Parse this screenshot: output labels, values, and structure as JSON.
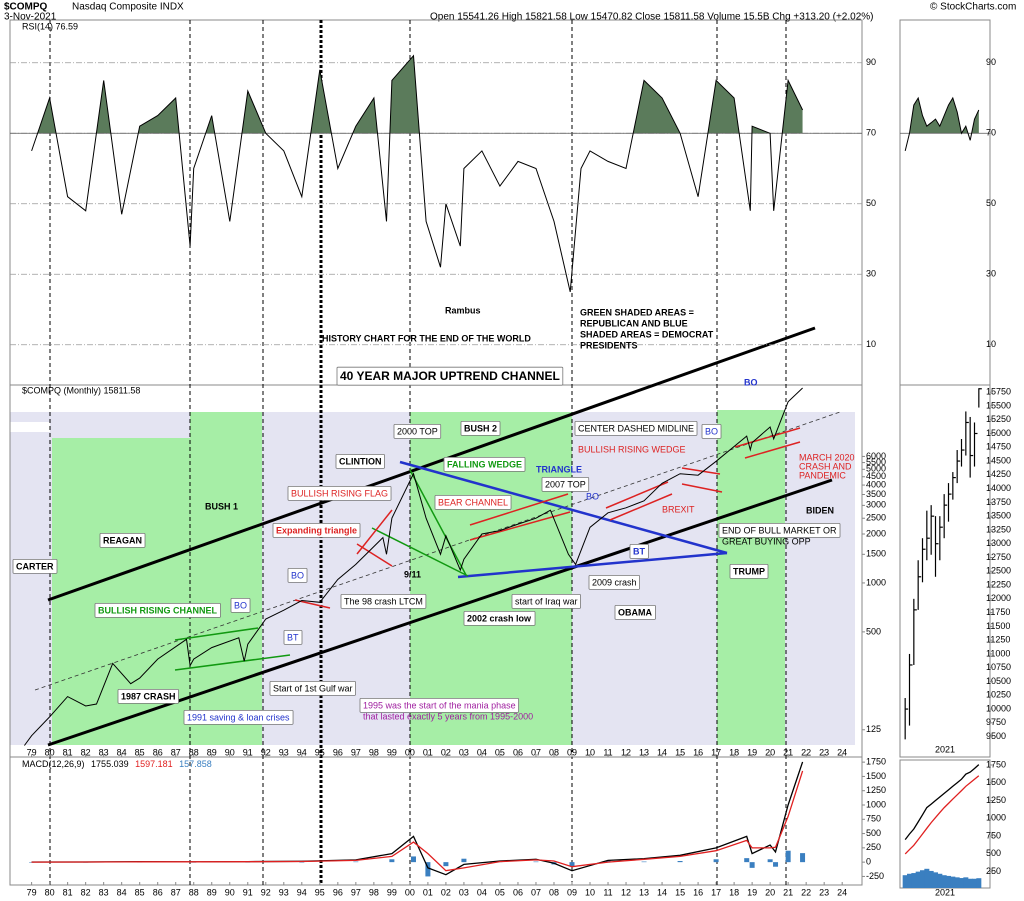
{
  "header": {
    "symbol": "$COMPQ",
    "name": "Nasdaq Composite INDX",
    "date": "3-Nov-2021",
    "quote": "Open 15541.26 High 15821.58 Low 15470.82 Close 15811.58 Volume 15.5B Chg +313.20 (+2.02%)",
    "credit": "© StockCharts.com"
  },
  "chart_data": [
    {
      "type": "line",
      "title": "RSI(14) 76.59",
      "color": "#000000",
      "shade_color": "#5b7b5b",
      "shade_above": 70,
      "x": [
        1979,
        1980,
        1981,
        1982,
        1983,
        1984,
        1985,
        1986,
        1987,
        1987.8,
        1988,
        1989,
        1990,
        1991,
        1992,
        1993,
        1994,
        1995,
        1996,
        1997,
        1998,
        1998.7,
        1999,
        2000.2,
        2000.9,
        2001.7,
        2002,
        2002.8,
        2003,
        2004,
        2005,
        2006,
        2007,
        2008,
        2008.9,
        2009.5,
        2010,
        2011,
        2012,
        2013,
        2014,
        2015,
        2016,
        2017,
        2018,
        2018.9,
        2019,
        2020,
        2020.2,
        2021,
        2021.8
      ],
      "values": [
        65,
        80,
        52,
        48,
        85,
        47,
        72,
        75,
        80,
        38,
        60,
        75,
        45,
        82,
        70,
        65,
        52,
        88,
        60,
        72,
        80,
        45,
        85,
        92,
        45,
        32,
        50,
        38,
        60,
        65,
        55,
        62,
        60,
        45,
        25,
        60,
        65,
        62,
        60,
        85,
        80,
        70,
        52,
        85,
        80,
        48,
        72,
        70,
        48,
        85,
        76.59
      ],
      "xlim": [
        1977.8,
        2025.1
      ],
      "ylim": [
        0,
        100
      ],
      "yticks": [
        10,
        30,
        50,
        70,
        90
      ],
      "grid": true
    },
    {
      "type": "line",
      "title": "$COMPQ (Monthly) 15811.58",
      "color": "#000000",
      "yscale": "log",
      "x": [
        1978.6,
        1979,
        1980,
        1981,
        1982,
        1982.6,
        1983.5,
        1984.5,
        1985,
        1986,
        1987.6,
        1987.8,
        1988,
        1989,
        1990.5,
        1990.8,
        1991,
        1992,
        1993,
        1994,
        1995,
        1996,
        1997,
        1998.5,
        1998.7,
        1999,
        2000.2,
        2000.9,
        2001.7,
        2002,
        2002.8,
        2003,
        2004,
        2005,
        2006,
        2007,
        2007.8,
        2008.8,
        2009.2,
        2010,
        2011,
        2012,
        2013,
        2014,
        2015,
        2016,
        2017,
        2018.7,
        2018.9,
        2019,
        2020,
        2020.2,
        2021,
        2021.8
      ],
      "values": [
        100,
        115,
        150,
        200,
        175,
        180,
        320,
        240,
        260,
        340,
        450,
        310,
        340,
        400,
        460,
        330,
        420,
        600,
        680,
        780,
        760,
        1050,
        1300,
        1900,
        1500,
        2500,
        4700,
        2500,
        1500,
        1950,
        1200,
        1400,
        2000,
        2100,
        2300,
        2500,
        2800,
        1500,
        1300,
        2200,
        2700,
        2900,
        3200,
        4100,
        4700,
        4600,
        5600,
        8000,
        6600,
        7300,
        9100,
        7700,
        13000,
        15811.58
      ],
      "xlim": [
        1977.8,
        2025.1
      ],
      "ylim": [
        85,
        16500
      ],
      "yticks": [
        125,
        500,
        1000,
        1500,
        2000,
        2500,
        3000,
        3500,
        4000,
        4500,
        5000,
        5500,
        6000
      ],
      "xticks": [
        {
          "value": 1979,
          "label": "79"
        },
        {
          "value": 1980,
          "label": "80"
        },
        {
          "value": 1981,
          "label": "81"
        },
        {
          "value": 1982,
          "label": "82"
        },
        {
          "value": 1983,
          "label": "83"
        },
        {
          "value": 1984,
          "label": "84"
        },
        {
          "value": 1985,
          "label": "85"
        },
        {
          "value": 1986,
          "label": "86"
        },
        {
          "value": 1987,
          "label": "87"
        },
        {
          "value": 1988,
          "label": "88"
        },
        {
          "value": 1989,
          "label": "89"
        },
        {
          "value": 1990,
          "label": "90"
        },
        {
          "value": 1991,
          "label": "91"
        },
        {
          "value": 1992,
          "label": "92"
        },
        {
          "value": 1993,
          "label": "93"
        },
        {
          "value": 1994,
          "label": "94"
        },
        {
          "value": 1995,
          "label": "95"
        },
        {
          "value": 1996,
          "label": "96"
        },
        {
          "value": 1997,
          "label": "97"
        },
        {
          "value": 1998,
          "label": "98"
        },
        {
          "value": 1999,
          "label": "99"
        },
        {
          "value": 2000,
          "label": "00"
        },
        {
          "value": 2001,
          "label": "01"
        },
        {
          "value": 2002,
          "label": "02"
        },
        {
          "value": 2003,
          "label": "03"
        },
        {
          "value": 2004,
          "label": "04"
        },
        {
          "value": 2005,
          "label": "05"
        },
        {
          "value": 2006,
          "label": "06"
        },
        {
          "value": 2007,
          "label": "07"
        },
        {
          "value": 2008,
          "label": "08"
        },
        {
          "value": 2009,
          "label": "09"
        },
        {
          "value": 2010,
          "label": "10"
        },
        {
          "value": 2011,
          "label": "11"
        },
        {
          "value": 2012,
          "label": "12"
        },
        {
          "value": 2013,
          "label": "13"
        },
        {
          "value": 2014,
          "label": "14"
        },
        {
          "value": 2015,
          "label": "15"
        },
        {
          "value": 2016,
          "label": "16"
        },
        {
          "value": 2017,
          "label": "17"
        },
        {
          "value": 2018,
          "label": "18"
        },
        {
          "value": 2019,
          "label": "19"
        },
        {
          "value": 2020,
          "label": "20"
        },
        {
          "value": 2021,
          "label": "21"
        },
        {
          "value": 2022,
          "label": "22"
        },
        {
          "value": 2023,
          "label": "23"
        },
        {
          "value": 2024,
          "label": "24"
        }
      ],
      "annotations": [
        "Rambus",
        "HISTORY CHART FOR THE END OF THE WORLD",
        "GREEN SHADED AREAS =",
        "REPUBLICAN AND BLUE",
        "SHADED AREAS = DEMOCRAT",
        "PRESIDENTS",
        "40 YEAR MAJOR UPTREND CHANNEL",
        "BO",
        "CARTER",
        "REAGAN",
        "BUSH 1",
        "CLINTION",
        "BUSH 2",
        "2000 TOP",
        "FALLING WEDGE",
        "TRIANGLE",
        "CENTER DASHED MIDLINE",
        "BO",
        "BULLISH RISING WEDGE",
        "BULLISH RISING FLAG",
        "BEAR CHANNEL",
        "2007 TOP",
        "BO",
        "Expanding triangle",
        "BREXIT",
        "MARCH 2020",
        "CRASH AND",
        "PANDEMIC",
        "BIDEN",
        "END OF BULL MARKET OR",
        "GREAT BUYING OPP",
        "BT",
        "TRUMP",
        "BO",
        "9/11",
        "2009 crash",
        "The 98 crash LTCM",
        "start of Iraq war",
        "OBAMA",
        "BULLISH RISING CHANNEL",
        "BO",
        "BT",
        "2002 crash low",
        "1987 CRASH",
        "Start of 1st Gulf war",
        "1995 was the start of the mania phase",
        "that lasted exactly 5 years from 1995-2000",
        "1991 saving & loan crises"
      ]
    },
    {
      "type": "line",
      "title": "MACD(12,26,9)",
      "x": [
        1979,
        1982,
        1985,
        1988,
        1991,
        1994,
        1997,
        1999,
        2000.2,
        2001,
        2002,
        2003,
        2005,
        2007,
        2008,
        2009,
        2011,
        2013,
        2015,
        2017,
        2018.7,
        2019,
        2020,
        2020.3,
        2021,
        2021.8
      ],
      "series": [
        {
          "color": "#000000",
          "last": 1755.039,
          "values": [
            2,
            3,
            8,
            5,
            10,
            15,
            40,
            150,
            450,
            -100,
            -220,
            -40,
            20,
            50,
            -20,
            -150,
            30,
            60,
            120,
            250,
            450,
            150,
            300,
            180,
            1000,
            1755.039
          ]
        },
        {
          "color": "#e02020",
          "last": 1597.181,
          "values": [
            1,
            2,
            6,
            6,
            8,
            12,
            30,
            100,
            350,
            150,
            -150,
            -100,
            10,
            40,
            20,
            -80,
            0,
            50,
            100,
            200,
            380,
            250,
            250,
            260,
            800,
            1597.181
          ]
        },
        {
          "color": "#3a7fc0",
          "last": 157.858,
          "kind": "bar",
          "values": [
            1,
            1,
            2,
            -1,
            2,
            3,
            10,
            50,
            100,
            -250,
            -70,
            60,
            10,
            10,
            -40,
            -70,
            30,
            10,
            20,
            50,
            70,
            -100,
            50,
            -80,
            200,
            157.858
          ]
        }
      ],
      "xlim": [
        1977.8,
        2025.1
      ],
      "ylim": [
        -400,
        1840
      ],
      "yticks": [
        -250,
        0,
        250,
        500,
        750,
        1000,
        1250,
        1500,
        1750
      ],
      "xticks": [
        {
          "value": 1979,
          "label": "79"
        },
        {
          "value": 1980,
          "label": "80"
        },
        {
          "value": 1981,
          "label": "81"
        },
        {
          "value": 1982,
          "label": "82"
        },
        {
          "value": 1983,
          "label": "83"
        },
        {
          "value": 1984,
          "label": "84"
        },
        {
          "value": 1985,
          "label": "85"
        },
        {
          "value": 1986,
          "label": "86"
        },
        {
          "value": 1987,
          "label": "87"
        },
        {
          "value": 1988,
          "label": "88"
        },
        {
          "value": 1989,
          "label": "89"
        },
        {
          "value": 1990,
          "label": "90"
        },
        {
          "value": 1991,
          "label": "91"
        },
        {
          "value": 1992,
          "label": "92"
        },
        {
          "value": 1993,
          "label": "93"
        },
        {
          "value": 1994,
          "label": "94"
        },
        {
          "value": 1995,
          "label": "95"
        },
        {
          "value": 1996,
          "label": "96"
        },
        {
          "value": 1997,
          "label": "97"
        },
        {
          "value": 1998,
          "label": "98"
        },
        {
          "value": 1999,
          "label": "99"
        },
        {
          "value": 2000,
          "label": "00"
        },
        {
          "value": 2001,
          "label": "01"
        },
        {
          "value": 2002,
          "label": "02"
        },
        {
          "value": 2003,
          "label": "03"
        },
        {
          "value": 2004,
          "label": "04"
        },
        {
          "value": 2005,
          "label": "05"
        },
        {
          "value": 2006,
          "label": "06"
        },
        {
          "value": 2007,
          "label": "07"
        },
        {
          "value": 2008,
          "label": "08"
        },
        {
          "value": 2009,
          "label": "09"
        },
        {
          "value": 2010,
          "label": "10"
        },
        {
          "value": 2011,
          "label": "11"
        },
        {
          "value": 2012,
          "label": "12"
        },
        {
          "value": 2013,
          "label": "13"
        },
        {
          "value": 2014,
          "label": "14"
        },
        {
          "value": 2015,
          "label": "15"
        },
        {
          "value": 2016,
          "label": "16"
        },
        {
          "value": 2017,
          "label": "17"
        },
        {
          "value": 2018,
          "label": "18"
        },
        {
          "value": 2019,
          "label": "19"
        },
        {
          "value": 2020,
          "label": "20"
        },
        {
          "value": 2021,
          "label": "21"
        },
        {
          "value": 2022,
          "label": "22"
        },
        {
          "value": 2023,
          "label": "23"
        },
        {
          "value": 2024,
          "label": "24"
        }
      ]
    },
    {
      "type": "line",
      "color": "#000000",
      "shade_color": "#5b7b5b",
      "shade_above": 70,
      "categories": [
        null,
        null,
        null,
        null,
        null,
        null,
        null,
        null,
        null,
        null,
        null,
        null,
        null,
        null,
        null,
        null,
        null,
        null
      ],
      "values": [
        65,
        70,
        78,
        80,
        75,
        72,
        73,
        74,
        72,
        75,
        78,
        80,
        76,
        70,
        72,
        68,
        74,
        76.59
      ],
      "ylim": [
        0,
        100
      ],
      "yticks": [
        10,
        30,
        50,
        70,
        90
      ]
    },
    {
      "type": "ohlc",
      "color": "#000000",
      "xlabel": "2021",
      "categories": [
        null,
        null,
        null,
        null,
        null,
        null,
        null,
        null,
        null,
        null,
        null,
        null,
        null,
        null,
        null,
        null,
        null,
        null
      ],
      "high": [
        10200,
        11000,
        12000,
        12700,
        13100,
        13600,
        13700,
        13500,
        13500,
        13900,
        14100,
        14300,
        14700,
        14900,
        15400,
        15300,
        15200,
        15821.58
      ],
      "low": [
        9450,
        9700,
        10800,
        11800,
        12300,
        12700,
        12800,
        12400,
        12700,
        13100,
        13400,
        13800,
        14100,
        14400,
        14600,
        14200,
        14400,
        15470.82
      ],
      "values": [
        10000,
        10800,
        11800,
        12400,
        12900,
        13100,
        13500,
        13000,
        13300,
        13700,
        13900,
        14200,
        14500,
        14700,
        15200,
        14600,
        15000,
        15811.58
      ],
      "ylim": [
        9130,
        15880
      ],
      "yticks": [
        9500,
        9750,
        10000,
        10250,
        10500,
        10750,
        11000,
        11250,
        11500,
        11750,
        12000,
        12250,
        12500,
        12750,
        13000,
        13250,
        13500,
        13750,
        14000,
        14250,
        14500,
        14750,
        15000,
        15250,
        15500,
        15750
      ]
    },
    {
      "type": "line",
      "xlabel": "2021",
      "categories": [
        null,
        null,
        null,
        null,
        null,
        null,
        null,
        null,
        null,
        null,
        null,
        null,
        null,
        null,
        null,
        null,
        null,
        null
      ],
      "series": [
        {
          "color": "#000000",
          "values": [
            700,
            780,
            850,
            950,
            1050,
            1150,
            1200,
            1250,
            1300,
            1350,
            1400,
            1450,
            1500,
            1550,
            1620,
            1650,
            1700,
            1755.039
          ]
        },
        {
          "color": "#e02020",
          "values": [
            500,
            560,
            620,
            700,
            780,
            860,
            940,
            1010,
            1080,
            1150,
            1210,
            1270,
            1330,
            1390,
            1450,
            1500,
            1550,
            1597.181
          ]
        },
        {
          "color": "#3a7fc0",
          "kind": "bar",
          "values": [
            200,
            220,
            230,
            250,
            270,
            290,
            260,
            240,
            220,
            200,
            190,
            180,
            170,
            160,
            170,
            150,
            150,
            157.858
          ]
        }
      ],
      "ylim": [
        20,
        1820
      ],
      "yticks": [
        250,
        500,
        750,
        1000,
        1250,
        1500,
        1750
      ]
    }
  ]
}
